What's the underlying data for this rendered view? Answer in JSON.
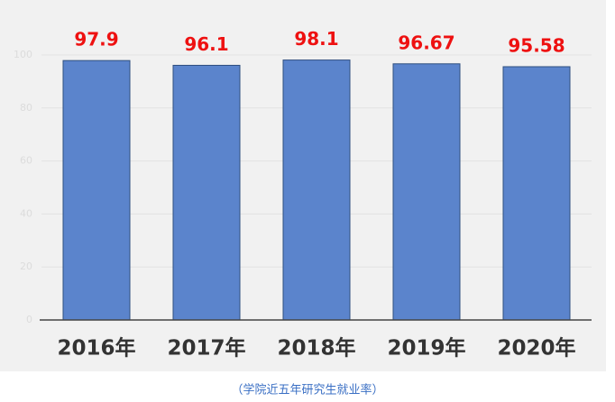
{
  "chart_data": {
    "type": "bar",
    "categories": [
      "2016年",
      "2017年",
      "2018年",
      "2019年",
      "2020年"
    ],
    "values": [
      97.9,
      96.1,
      98.1,
      96.67,
      95.58
    ],
    "color": "#5b84cc",
    "label_color": "#ee1111",
    "ylim": [
      0,
      100
    ],
    "yticks": [
      0,
      20,
      40,
      60,
      80,
      100
    ],
    "grid": true,
    "caption": "（学院近五年研究生就业率）"
  }
}
